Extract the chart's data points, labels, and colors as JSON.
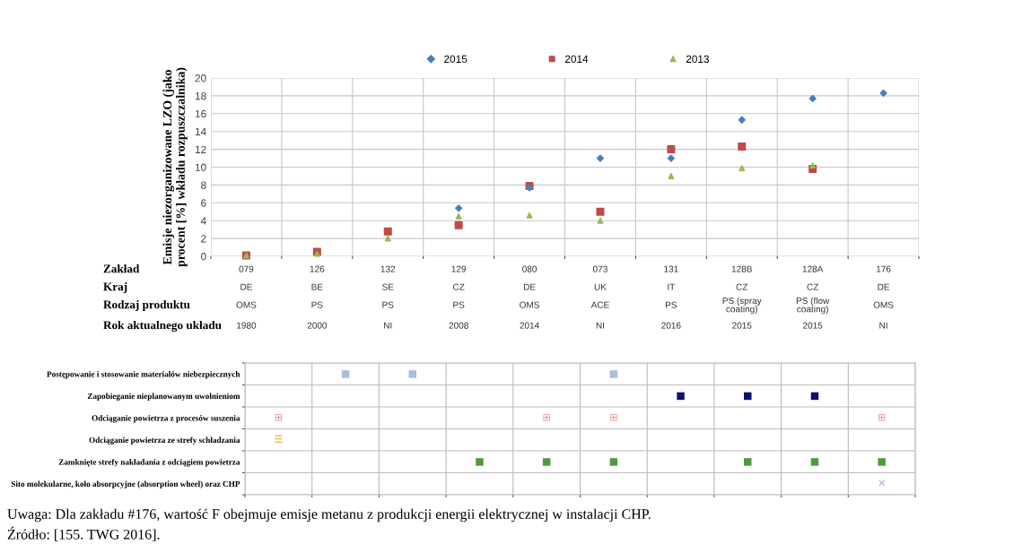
{
  "chart_data": [
    {
      "type": "scatter",
      "ylabel": "Emisje niezorganizowane LZO (jako\nprocent [%] wkładu rozpuszczalnika)",
      "categories": [
        "079\nDE\nOMS\n1980",
        "126\nBE\nPS\n2000",
        "132\nSE\nPS\nNI",
        "129\nCZ\nPS\n2008",
        "080\nDE\nOMS\n2014",
        "073\nUK\nACE\nNI",
        "131\nIT\nPS\n2016",
        "128B\nCZ\nPS (spray coating)\n2015",
        "128A\nCZ\nPS (flow coating)\n2015",
        "176\nDE\nOMS\nNI"
      ],
      "series": [
        {
          "name": "2015",
          "color": "#4a7ebb",
          "marker": "diamond",
          "values": [
            null,
            null,
            null,
            5.4,
            7.7,
            11.0,
            11.0,
            15.3,
            17.7,
            18.3
          ]
        },
        {
          "name": "2014",
          "color": "#be4b48",
          "marker": "square",
          "values": [
            0.1,
            0.5,
            2.8,
            3.5,
            7.9,
            5.0,
            12.0,
            12.3,
            9.8,
            null
          ]
        },
        {
          "name": "2013",
          "color": "#98b954",
          "marker": "triangle",
          "values": [
            0.1,
            0.3,
            2.0,
            4.5,
            4.6,
            4.0,
            9.0,
            9.9,
            10.2,
            null
          ]
        }
      ],
      "ylim": [
        0,
        20
      ],
      "yticks": [
        0,
        2,
        4,
        6,
        8,
        10,
        12,
        14,
        16,
        18,
        20
      ],
      "grid": true,
      "legend": "top",
      "annotations": [
        "Zakład",
        "Kraj",
        "Rodzaj produktu",
        "Rok aktualnego układu"
      ]
    },
    {
      "type": "heatmap",
      "categories": [
        null,
        null,
        null,
        null,
        null,
        null,
        null,
        null,
        null,
        null
      ],
      "y_categories": [
        "Postępowanie i stosowanie materiałów niebezpiecznych",
        "Zapobieganie nieplanowanym uwolnieniom",
        "Odciąganie powietrza z procesów suszenia",
        "Odciąganie powietrza ze strefy schładzania",
        "Zamknięte strefy nakładania z odciągiem powietrza",
        "Sito molekularne, koło absorpcyjne (absorption wheel) oraz CHP"
      ],
      "cells": [
        [
          null,
          "■",
          "■",
          null,
          null,
          "■",
          null,
          null,
          null,
          null
        ],
        [
          null,
          null,
          null,
          null,
          null,
          null,
          "■",
          "■",
          "■",
          null
        ],
        [
          "⊞",
          null,
          null,
          null,
          "⊞",
          "⊞",
          null,
          null,
          null,
          "⊞"
        ],
        [
          "☰",
          null,
          null,
          null,
          null,
          null,
          null,
          null,
          null,
          null
        ],
        [
          null,
          null,
          null,
          "■",
          "■",
          "■",
          null,
          "■",
          "■",
          "■"
        ],
        [
          null,
          null,
          null,
          null,
          null,
          null,
          null,
          null,
          null,
          "✕"
        ]
      ],
      "colors": [
        "#a9bde0",
        "#10106e",
        "#e08a8a",
        "#e0a020",
        "#4f9a40",
        "#a8a8d8"
      ],
      "annotations": [
        "Uwaga: Dla zakładu #176, wartość F obejmuje emisje metanu z produkcji energii elektrycznej w instalacji CHP.",
        "Źródło: [155. TWG 2016]."
      ]
    }
  ]
}
